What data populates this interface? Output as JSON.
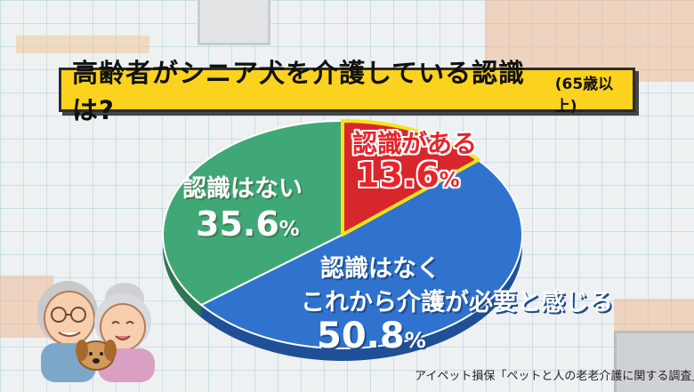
{
  "title": {
    "main": "高齢者がシニア犬を介護している認識は?",
    "sub": "(65歳以上)"
  },
  "colors": {
    "title_bg": "#fbd21e",
    "red_slice": "#d7272d",
    "green_slice": "#40a877",
    "blue_slice": "#2f73cf",
    "highlight_border": "#f6e31a"
  },
  "chart_data": {
    "type": "pie",
    "slices": [
      {
        "label": "認識がある",
        "value": 13.6,
        "display": "13.6",
        "color": "#d7272d"
      },
      {
        "label_lines": [
          "認識はなく",
          "これから介護が必要と感じる"
        ],
        "value": 50.8,
        "display": "50.8",
        "color": "#2f73cf"
      },
      {
        "label": "認識はない",
        "value": 35.6,
        "display": "35.6",
        "color": "#40a877"
      }
    ],
    "unit": "%"
  },
  "source": "アイペット損保「ペットと人の老老介護に関する調査」"
}
